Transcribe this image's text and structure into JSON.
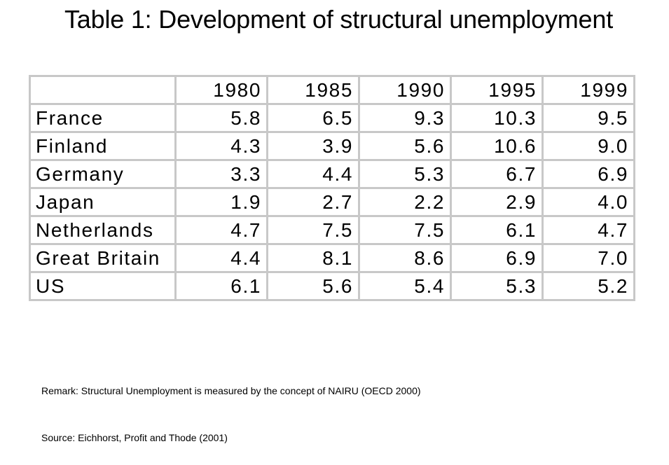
{
  "title": "Table 1: Development of structural unemployment",
  "chart_data": {
    "type": "table",
    "columns": [
      "",
      "1980",
      "1985",
      "1990",
      "1995",
      "1999"
    ],
    "rows": [
      {
        "country": "France",
        "values": [
          "5.8",
          "6.5",
          "9.3",
          "10.3",
          "9.5"
        ]
      },
      {
        "country": "Finland",
        "values": [
          "4.3",
          "3.9",
          "5.6",
          "10.6",
          "9.0"
        ]
      },
      {
        "country": "Germany",
        "values": [
          "3.3",
          "4.4",
          "5.3",
          "6.7",
          "6.9"
        ]
      },
      {
        "country": "Japan",
        "values": [
          "1.9",
          "2.7",
          "2.2",
          "2.9",
          "4.0"
        ]
      },
      {
        "country": "Netherlands",
        "values": [
          "4.7",
          "7.5",
          "7.5",
          "6.1",
          "4.7"
        ]
      },
      {
        "country": "Great Britain",
        "values": [
          "4.4",
          "8.1",
          "8.6",
          "6.9",
          "7.0"
        ]
      },
      {
        "country": "US",
        "values": [
          "6.1",
          "5.6",
          "5.4",
          "5.3",
          "5.2"
        ]
      }
    ]
  },
  "remark": "Remark: Structural Unemployment is measured by the concept of NAIRU (OECD 2000)",
  "source": "Source: Eichhorst, Profit and Thode (2001)"
}
